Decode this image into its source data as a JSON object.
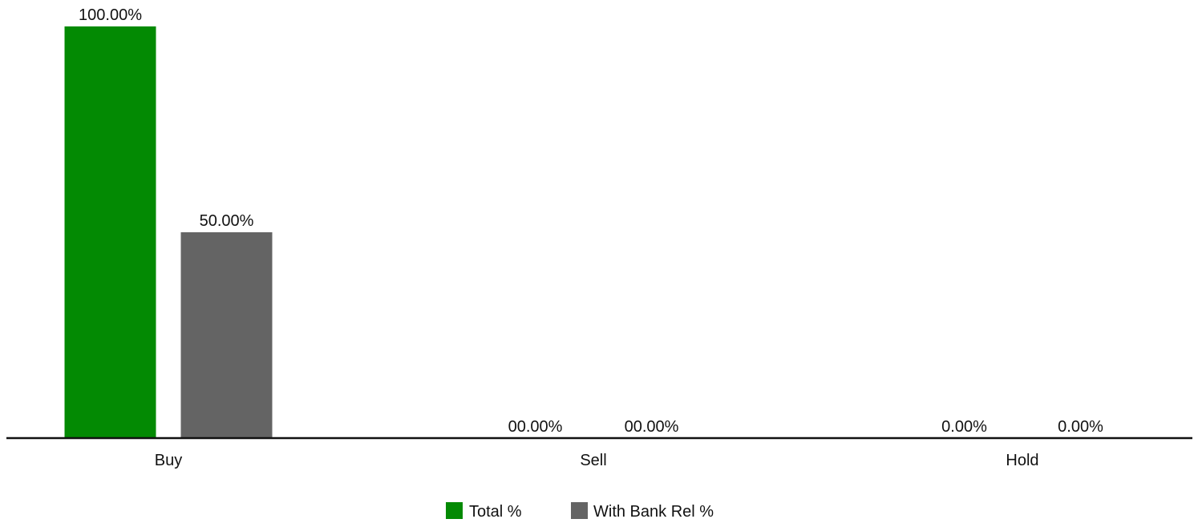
{
  "chart_data": {
    "type": "bar",
    "title": "",
    "xlabel": "",
    "ylabel": "",
    "ylim": [
      0,
      100
    ],
    "grid": false,
    "legend_position": "bottom-center",
    "categories": [
      "Buy",
      "Sell",
      "Hold"
    ],
    "series": [
      {
        "name": "Total %",
        "color": "#038a03",
        "values": [
          100,
          0,
          0
        ],
        "labels": [
          "100.00%",
          "00.00%",
          "0.00%"
        ]
      },
      {
        "name": "With Bank Rel %",
        "color": "#646464",
        "values": [
          50,
          0,
          0
        ],
        "labels": [
          "50.00%",
          "00.00%",
          "0.00%"
        ]
      }
    ]
  }
}
